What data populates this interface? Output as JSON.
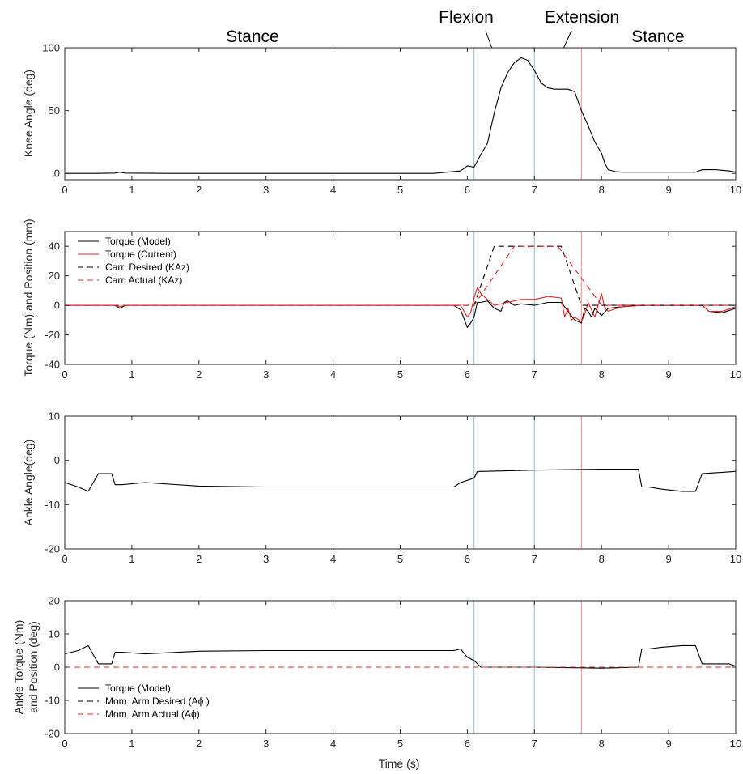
{
  "figure": {
    "phase_labels": [
      "Stance",
      "Flexion",
      "Extension",
      "Stance"
    ],
    "xlabel": "Time (s)"
  },
  "chart_data": [
    {
      "type": "line",
      "ylabel": "Knee Angle (deg)",
      "xlim": [
        0,
        10
      ],
      "ylim": [
        -5,
        100
      ],
      "xticks": [
        0,
        1,
        2,
        3,
        4,
        5,
        6,
        7,
        8,
        9,
        10
      ],
      "yticks": [
        0,
        50,
        100
      ],
      "vlines": [
        {
          "x": 6.1,
          "color": "#9ec6e0"
        },
        {
          "x": 7.0,
          "color": "#9ec6e0"
        },
        {
          "x": 7.7,
          "color": "#f4a0a0"
        }
      ],
      "series": [
        {
          "color": "#000000",
          "dash": "solid",
          "x": [
            0,
            0.5,
            0.75,
            0.82,
            0.9,
            1.5,
            3,
            5.5,
            5.9,
            6.0,
            6.1,
            6.2,
            6.3,
            6.4,
            6.5,
            6.6,
            6.7,
            6.8,
            6.9,
            7.0,
            7.1,
            7.2,
            7.3,
            7.5,
            7.6,
            7.7,
            7.8,
            7.9,
            8.0,
            8.05,
            8.1,
            8.2,
            8.3,
            8.5,
            9.0,
            9.4,
            9.5,
            9.7,
            9.9,
            10
          ],
          "y": [
            0,
            0,
            0.3,
            1,
            0.3,
            0,
            0,
            0,
            2,
            6,
            5,
            15,
            24,
            48,
            68,
            80,
            88,
            92,
            90,
            82,
            72,
            68,
            67,
            67,
            65,
            50,
            38,
            25,
            16,
            8,
            3,
            1.5,
            1,
            1,
            1,
            1,
            3,
            3,
            2,
            1
          ]
        }
      ]
    },
    {
      "type": "line",
      "ylabel": "Torque (Nm) and Position (mm)",
      "xlim": [
        0,
        10
      ],
      "ylim": [
        -40,
        50
      ],
      "xticks": [
        0,
        1,
        2,
        3,
        4,
        5,
        6,
        7,
        8,
        9,
        10
      ],
      "yticks": [
        -40,
        -20,
        0,
        20,
        40
      ],
      "vlines": [
        {
          "x": 6.1,
          "color": "#9ec6e0"
        },
        {
          "x": 7.0,
          "color": "#9ec6e0"
        },
        {
          "x": 7.7,
          "color": "#f4a0a0"
        }
      ],
      "legend": [
        {
          "label": "Torque (Model)",
          "color": "#000000",
          "dash": "solid"
        },
        {
          "label": "Torque (Current)",
          "color": "#e82020",
          "dash": "solid"
        },
        {
          "label": "Carr. Desired (KAz)",
          "color": "#000000",
          "dash": "dashed"
        },
        {
          "label": "Carr. Actual (KAz)",
          "color": "#e82020",
          "dash": "dashed"
        }
      ],
      "series": [
        {
          "color": "#000000",
          "dash": "solid",
          "x": [
            0,
            0.75,
            0.82,
            0.9,
            2,
            4,
            5.8,
            5.9,
            6.0,
            6.05,
            6.1,
            6.15,
            6.2,
            6.3,
            6.4,
            6.5,
            6.55,
            6.6,
            6.7,
            6.8,
            7.0,
            7.2,
            7.4,
            7.6,
            7.7,
            7.75,
            7.8,
            7.85,
            7.9,
            8.0,
            8.1,
            8.3,
            8.6,
            9.0,
            9.5,
            9.6,
            9.8,
            10
          ],
          "y": [
            0,
            0,
            -2,
            0,
            0,
            0,
            0,
            -3,
            -15,
            -12,
            -8,
            2,
            2,
            3,
            -2,
            -4,
            2,
            3,
            0,
            1,
            0,
            2,
            2,
            -10,
            -12,
            -2,
            -4,
            -8,
            -2,
            -7,
            -2,
            -1,
            0,
            0,
            0,
            -4,
            -5,
            -2
          ]
        },
        {
          "color": "#e82020",
          "dash": "solid",
          "x": [
            0,
            0.75,
            0.82,
            0.9,
            2,
            4,
            5.9,
            6.0,
            6.05,
            6.1,
            6.15,
            6.2,
            6.4,
            6.6,
            6.8,
            7.0,
            7.2,
            7.4,
            7.45,
            7.5,
            7.55,
            7.6,
            7.7,
            7.75,
            7.8,
            7.9,
            8.0,
            8.05,
            8.1,
            8.3,
            8.6,
            9.0,
            9.5,
            9.6,
            9.8,
            10
          ],
          "y": [
            0,
            0,
            -1,
            0,
            0,
            0,
            0,
            -8,
            -5,
            5,
            12,
            8,
            0,
            2,
            4,
            4,
            6,
            5,
            -8,
            -2,
            -10,
            -8,
            -11,
            -6,
            2,
            -8,
            8,
            -2,
            -4,
            -1,
            0,
            0,
            0,
            -4,
            -4,
            -1
          ]
        },
        {
          "color": "#000000",
          "dash": "dashed",
          "x": [
            0,
            6.1,
            6.4,
            7.4,
            7.7,
            8.0,
            10
          ],
          "y": [
            0,
            0,
            40,
            40,
            0,
            0,
            0
          ]
        },
        {
          "color": "#e82020",
          "dash": "dashed",
          "x": [
            0,
            6.1,
            6.7,
            7.35,
            8.0,
            10
          ],
          "y": [
            0,
            0,
            40,
            40,
            0,
            0
          ]
        }
      ]
    },
    {
      "type": "line",
      "ylabel": "Ankle Angle(deg)",
      "xlim": [
        0,
        10
      ],
      "ylim": [
        -20,
        10
      ],
      "xticks": [
        0,
        1,
        2,
        3,
        4,
        5,
        6,
        7,
        8,
        9,
        10
      ],
      "yticks": [
        -20,
        -10,
        0,
        10
      ],
      "vlines": [
        {
          "x": 6.1,
          "color": "#9ec6e0"
        },
        {
          "x": 7.0,
          "color": "#9ec6e0"
        },
        {
          "x": 7.7,
          "color": "#f4a0a0"
        }
      ],
      "series": [
        {
          "color": "#000000",
          "dash": "solid",
          "x": [
            0,
            0.2,
            0.35,
            0.5,
            0.7,
            0.75,
            0.85,
            1.2,
            2,
            3,
            4,
            5,
            5.8,
            5.9,
            6.0,
            6.1,
            6.15,
            6.2,
            7,
            8,
            8.55,
            8.6,
            8.7,
            8.9,
            9.2,
            9.4,
            9.5,
            10
          ],
          "y": [
            -5,
            -6,
            -7,
            -3,
            -3,
            -5.5,
            -5.5,
            -5,
            -5.8,
            -6,
            -6,
            -6,
            -6,
            -5,
            -4.5,
            -4,
            -2.5,
            -2.5,
            -2.2,
            -2,
            -2,
            -6,
            -6,
            -6.5,
            -7,
            -7,
            -3,
            -2.5
          ]
        }
      ]
    },
    {
      "type": "line",
      "ylabel": "Ankle Torque (Nm) and Position (deg)",
      "xlim": [
        0,
        10
      ],
      "ylim": [
        -20,
        20
      ],
      "xticks": [
        0,
        1,
        2,
        3,
        4,
        5,
        6,
        7,
        8,
        9,
        10
      ],
      "yticks": [
        -20,
        -10,
        0,
        10,
        20
      ],
      "vlines": [
        {
          "x": 6.1,
          "color": "#9ec6e0"
        },
        {
          "x": 7.0,
          "color": "#9ec6e0"
        },
        {
          "x": 7.7,
          "color": "#f4a0a0"
        }
      ],
      "legend": [
        {
          "label": "Torque (Model)",
          "color": "#000000",
          "dash": "solid"
        },
        {
          "label": "Mom. Arm Desired (Aϕ )",
          "color": "#000000",
          "dash": "dashed"
        },
        {
          "label": "Mom. Arm Actual (Aϕ)",
          "color": "#e82020",
          "dash": "dashed"
        }
      ],
      "series": [
        {
          "color": "#000000",
          "dash": "solid",
          "x": [
            0,
            0.2,
            0.35,
            0.5,
            0.7,
            0.75,
            0.85,
            1.2,
            2,
            3,
            4,
            5,
            5.8,
            5.9,
            6.0,
            6.1,
            6.2,
            7,
            8,
            8.55,
            8.6,
            8.7,
            8.9,
            9.2,
            9.4,
            9.5,
            9.9,
            10
          ],
          "y": [
            4,
            5,
            6.5,
            1,
            1,
            4.5,
            4.5,
            4,
            4.8,
            5,
            5,
            5,
            5,
            5.5,
            3,
            2,
            0,
            0,
            -0.3,
            0,
            5.5,
            5.5,
            6,
            6.5,
            6.5,
            1,
            1,
            0.3
          ]
        },
        {
          "color": "#000000",
          "dash": "dashed",
          "x": [
            0,
            10
          ],
          "y": [
            0,
            0
          ]
        },
        {
          "color": "#e82020",
          "dash": "dashed",
          "x": [
            0,
            10
          ],
          "y": [
            0,
            0
          ]
        }
      ]
    }
  ]
}
